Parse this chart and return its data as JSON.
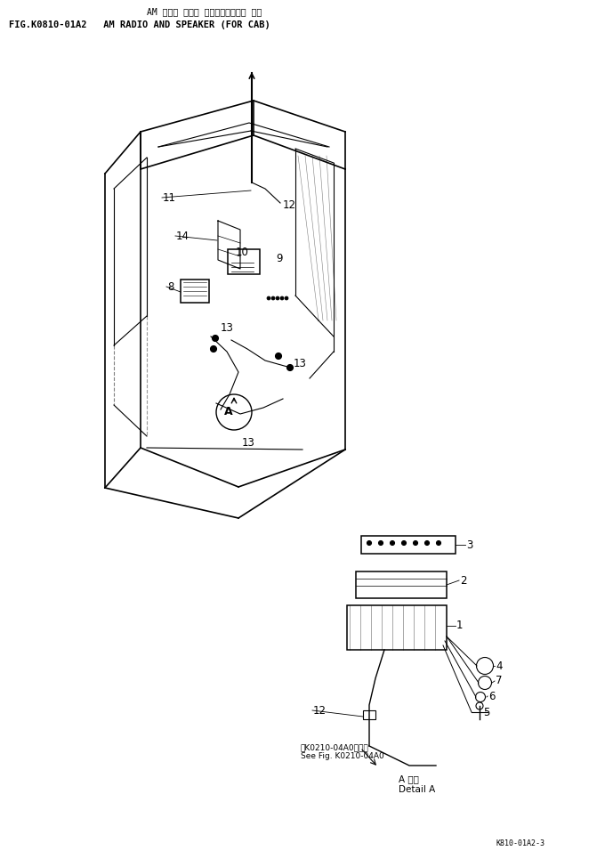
{
  "title_jp": "AM ラジオ および スピーカ（キャブ 用）",
  "title_en": "FIG.K0810-01A2   AM RADIO AND SPEAKER (FOR CAB)",
  "bg_color": "#ffffff",
  "line_color": "#000000",
  "fig_width": 6.89,
  "fig_height": 9.56,
  "dpi": 100,
  "detail_a_label": "A 詳細\nDetail A",
  "see_fig_text": "第K0210-04A0図参照\nSee Fig. K0210-04A0",
  "footer": "K810-01A2-3"
}
